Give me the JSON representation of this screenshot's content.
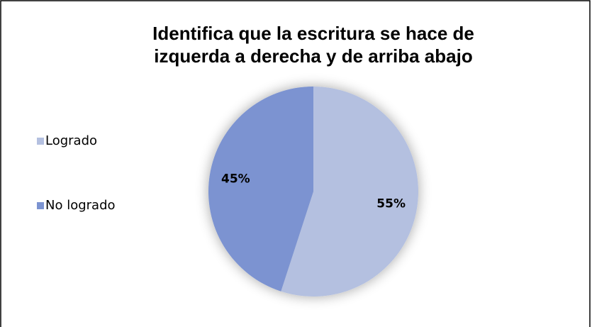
{
  "chart_data": {
    "type": "pie",
    "title": [
      "Identifica que la escritura se hace de",
      "izquerda a derecha y de arriba abajo"
    ],
    "categories": [
      "Logrado",
      "No logrado"
    ],
    "values": [
      55,
      45
    ],
    "value_labels": [
      "55%",
      "45%"
    ],
    "colors": [
      "#b4c0e0",
      "#7b93d1"
    ],
    "legend": "left"
  }
}
